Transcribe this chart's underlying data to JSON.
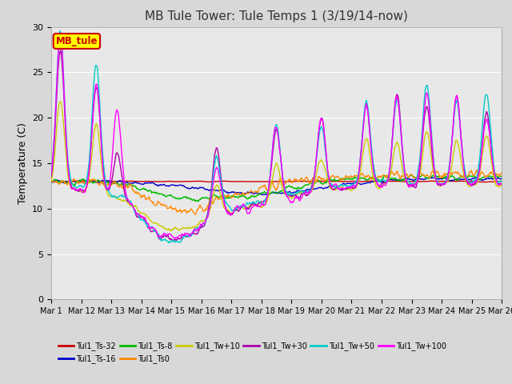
{
  "title": "MB Tule Tower: Tule Temps 1 (3/19/14-now)",
  "ylabel": "Temperature (C)",
  "ylim": [
    0,
    30
  ],
  "yticks": [
    0,
    5,
    10,
    15,
    20,
    25,
    30
  ],
  "xtick_positions": [
    0,
    1,
    2,
    3,
    4,
    5,
    6,
    7,
    8,
    9,
    10,
    11,
    12,
    13,
    14,
    15
  ],
  "xtick_labels": [
    "Mar 1",
    "Mar 12",
    "Mar 13",
    "Mar 14",
    "Mar 15",
    "Mar 16",
    "Mar 17",
    "Mar 18",
    "Mar 19",
    "Mar 20",
    "Mar 21",
    "Mar 22",
    "Mar 23",
    "Mar 24",
    "Mar 25",
    "Mar 26"
  ],
  "series_labels": [
    "Tul1_Ts-32",
    "Tul1_Ts-16",
    "Tul1_Ts-8",
    "Tul1_Ts0",
    "Tul1_Tw+10",
    "Tul1_Tw+30",
    "Tul1_Tw+50",
    "Tul1_Tw+100"
  ],
  "series_colors": [
    "#cc0000",
    "#0000cc",
    "#00bb00",
    "#ff8800",
    "#cccc00",
    "#aa00aa",
    "#00cccc",
    "#ff00ff"
  ],
  "fig_bg_color": "#d8d8d8",
  "plot_bg_color": "#e8e8e8",
  "grid_color": "#ffffff",
  "title_fontsize": 11,
  "label_fontsize": 9,
  "tick_fontsize": 8,
  "legend_fontsize": 8,
  "lw": 1.0,
  "mb_tule_label": "MB_tule",
  "mb_tule_color": "#cc0000",
  "mb_tule_bg": "#ffff00",
  "mb_tule_edge": "#cc0000"
}
